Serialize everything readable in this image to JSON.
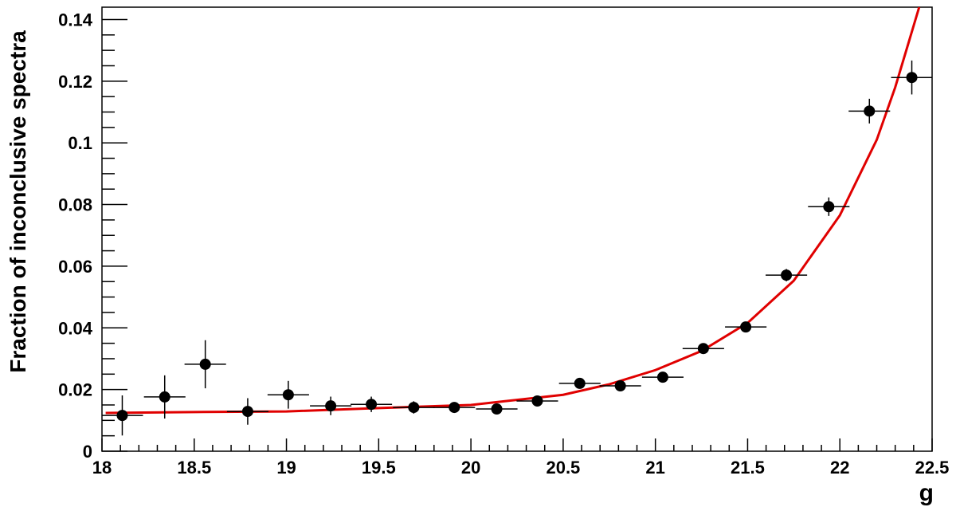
{
  "chart_data": {
    "type": "scatter",
    "x_label": "g",
    "y_label": "Fraction of inconclusive spectra",
    "xlim": [
      18,
      22.5
    ],
    "ylim": [
      0,
      0.144
    ],
    "xticks": [
      18,
      18.5,
      19,
      19.5,
      20,
      20.5,
      21,
      21.5,
      22,
      22.5
    ],
    "yticks": [
      0,
      0.02,
      0.04,
      0.06,
      0.08,
      0.1,
      0.12,
      0.14
    ],
    "series": [
      {
        "color": "#000000",
        "x": [
          18.11,
          18.34,
          18.56,
          18.79,
          19.01,
          19.24,
          19.46,
          19.69,
          19.91,
          20.14,
          20.36,
          20.59,
          20.81,
          21.04,
          21.26,
          21.49,
          21.71,
          21.94,
          22.16,
          22.39
        ],
        "values": [
          0.0116,
          0.0176,
          0.0282,
          0.0129,
          0.0183,
          0.0147,
          0.0152,
          0.0142,
          0.0142,
          0.0137,
          0.0163,
          0.022,
          0.0212,
          0.024,
          0.0333,
          0.0403,
          0.0571,
          0.0793,
          0.1103,
          0.1212
        ],
        "yerr": [
          0.0065,
          0.007,
          0.0078,
          0.0043,
          0.0045,
          0.003,
          0.0025,
          0.002,
          0.0015,
          0.0012,
          0.0012,
          0.001,
          0.001,
          0.001,
          0.0012,
          0.0012,
          0.002,
          0.003,
          0.004,
          0.0055
        ],
        "xerr": 0.1125
      }
    ],
    "fit": {
      "color": "#e00000",
      "x": [
        18.02,
        18.5,
        19,
        19.5,
        20,
        20.5,
        20.75,
        21,
        21.25,
        21.5,
        21.75,
        22,
        22.2,
        22.3,
        22.43
      ],
      "values": [
        0.0124,
        0.0127,
        0.0129,
        0.014,
        0.015,
        0.0183,
        0.0217,
        0.0263,
        0.0325,
        0.0416,
        0.0553,
        0.0765,
        0.101,
        0.118,
        0.144
      ]
    }
  }
}
